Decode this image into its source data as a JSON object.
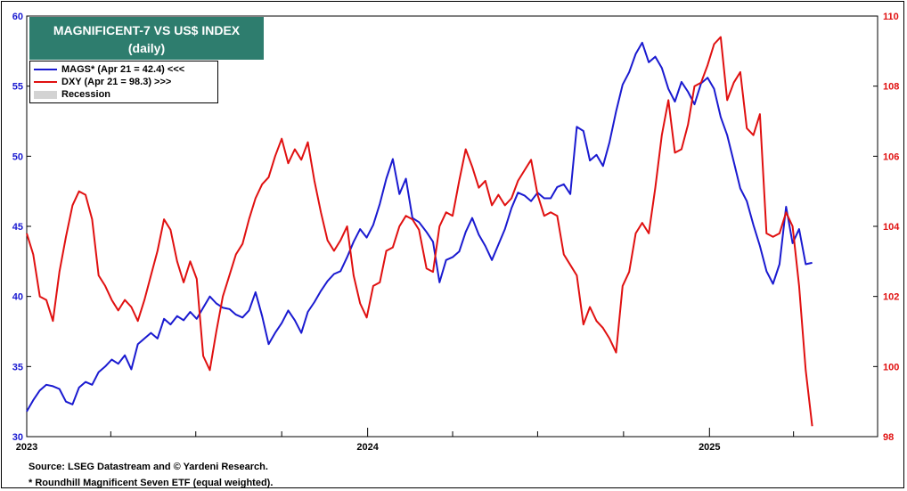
{
  "title_line1": "MAGNIFICENT-7 VS US$ INDEX",
  "title_line2": "(daily)",
  "legend": [
    {
      "label": "MAGS* (Apr 21 = 42.4) <<<",
      "color": "#1a1ad0",
      "kind": "line"
    },
    {
      "label": "DXY (Apr 21 = 98.3) >>>",
      "color": "#e01010",
      "kind": "line"
    },
    {
      "label": "Recession",
      "color": "#d3d3d3",
      "kind": "shade"
    }
  ],
  "footnotes": [
    "Source: LSEG Datastream and © Yardeni Research.",
    "* Roundhill Magnificent Seven ETF (equal weighted)."
  ],
  "chart_data": {
    "type": "line",
    "left_axis": {
      "ylim": [
        30,
        60
      ],
      "ticks": [
        30,
        35,
        40,
        45,
        50,
        55,
        60
      ],
      "color": "#1a1ad0"
    },
    "right_axis": {
      "ylim": [
        98,
        110
      ],
      "ticks": [
        98,
        100,
        102,
        104,
        106,
        108,
        110
      ],
      "color": "#e01010"
    },
    "x_axis": {
      "range": [
        "2023-01-01",
        "2025-06-30"
      ],
      "labels": [
        "2023",
        "2024",
        "2025"
      ]
    },
    "grid": false,
    "legend_position": "top-left",
    "series": [
      {
        "name": "MAGS* (Apr 21 = 42.4) <<<",
        "axis": "left",
        "color": "#1a1ad0",
        "points": [
          [
            "2023-01-01",
            31.8
          ],
          [
            "2023-01-08",
            32.6
          ],
          [
            "2023-01-15",
            33.3
          ],
          [
            "2023-01-22",
            33.7
          ],
          [
            "2023-01-29",
            33.6
          ],
          [
            "2023-02-05",
            33.4
          ],
          [
            "2023-02-12",
            32.5
          ],
          [
            "2023-02-19",
            32.3
          ],
          [
            "2023-02-26",
            33.5
          ],
          [
            "2023-03-05",
            33.9
          ],
          [
            "2023-03-12",
            33.7
          ],
          [
            "2023-03-19",
            34.6
          ],
          [
            "2023-03-26",
            35.0
          ],
          [
            "2023-04-02",
            35.5
          ],
          [
            "2023-04-09",
            35.2
          ],
          [
            "2023-04-16",
            35.8
          ],
          [
            "2023-04-23",
            34.8
          ],
          [
            "2023-04-30",
            36.6
          ],
          [
            "2023-05-07",
            37.0
          ],
          [
            "2023-05-14",
            37.4
          ],
          [
            "2023-05-21",
            37.0
          ],
          [
            "2023-05-28",
            38.4
          ],
          [
            "2023-06-04",
            38.0
          ],
          [
            "2023-06-11",
            38.6
          ],
          [
            "2023-06-18",
            38.3
          ],
          [
            "2023-06-25",
            38.9
          ],
          [
            "2023-07-02",
            38.4
          ],
          [
            "2023-07-09",
            39.2
          ],
          [
            "2023-07-16",
            40.0
          ],
          [
            "2023-07-23",
            39.5
          ],
          [
            "2023-07-30",
            39.2
          ],
          [
            "2023-08-06",
            39.1
          ],
          [
            "2023-08-13",
            38.7
          ],
          [
            "2023-08-20",
            38.5
          ],
          [
            "2023-08-27",
            39.0
          ],
          [
            "2023-09-03",
            40.3
          ],
          [
            "2023-09-10",
            38.6
          ],
          [
            "2023-09-17",
            36.6
          ],
          [
            "2023-09-24",
            37.4
          ],
          [
            "2023-10-01",
            38.1
          ],
          [
            "2023-10-08",
            39.0
          ],
          [
            "2023-10-15",
            38.3
          ],
          [
            "2023-10-22",
            37.4
          ],
          [
            "2023-10-29",
            38.9
          ],
          [
            "2023-11-05",
            39.6
          ],
          [
            "2023-11-12",
            40.4
          ],
          [
            "2023-11-19",
            41.1
          ],
          [
            "2023-11-26",
            41.6
          ],
          [
            "2023-12-03",
            41.8
          ],
          [
            "2023-12-10",
            42.8
          ],
          [
            "2023-12-17",
            43.9
          ],
          [
            "2023-12-24",
            44.8
          ],
          [
            "2023-12-31",
            44.2
          ],
          [
            "2024-01-07",
            45.1
          ],
          [
            "2024-01-14",
            46.6
          ],
          [
            "2024-01-21",
            48.4
          ],
          [
            "2024-01-28",
            49.8
          ],
          [
            "2024-02-04",
            47.3
          ],
          [
            "2024-02-11",
            48.4
          ],
          [
            "2024-02-18",
            45.6
          ],
          [
            "2024-02-25",
            45.3
          ],
          [
            "2024-03-04",
            44.6
          ],
          [
            "2024-03-11",
            43.9
          ],
          [
            "2024-03-18",
            41.0
          ],
          [
            "2024-03-25",
            42.6
          ],
          [
            "2024-04-01",
            42.8
          ],
          [
            "2024-04-08",
            43.2
          ],
          [
            "2024-04-15",
            44.6
          ],
          [
            "2024-04-22",
            45.6
          ],
          [
            "2024-04-29",
            44.4
          ],
          [
            "2024-05-06",
            43.6
          ],
          [
            "2024-05-13",
            42.6
          ],
          [
            "2024-05-20",
            43.7
          ],
          [
            "2024-05-27",
            44.8
          ],
          [
            "2024-06-03",
            46.3
          ],
          [
            "2024-06-10",
            47.4
          ],
          [
            "2024-06-17",
            47.2
          ],
          [
            "2024-06-24",
            46.8
          ],
          [
            "2024-07-01",
            47.4
          ],
          [
            "2024-07-08",
            47.0
          ],
          [
            "2024-07-15",
            47.0
          ],
          [
            "2024-07-22",
            47.8
          ],
          [
            "2024-07-29",
            48.0
          ],
          [
            "2024-08-05",
            47.3
          ],
          [
            "2024-08-12",
            52.1
          ],
          [
            "2024-08-19",
            51.8
          ],
          [
            "2024-08-26",
            49.7
          ],
          [
            "2024-09-02",
            50.1
          ],
          [
            "2024-09-09",
            49.3
          ],
          [
            "2024-09-16",
            51.0
          ],
          [
            "2024-09-23",
            53.2
          ],
          [
            "2024-09-30",
            55.1
          ],
          [
            "2024-10-07",
            56.0
          ],
          [
            "2024-10-14",
            57.3
          ],
          [
            "2024-10-21",
            58.1
          ],
          [
            "2024-10-28",
            56.7
          ],
          [
            "2024-11-04",
            57.1
          ],
          [
            "2024-11-11",
            56.3
          ],
          [
            "2024-11-18",
            54.8
          ],
          [
            "2024-11-25",
            53.9
          ],
          [
            "2024-12-02",
            55.3
          ],
          [
            "2024-12-09",
            54.6
          ],
          [
            "2024-12-16",
            53.7
          ],
          [
            "2024-12-23",
            55.2
          ],
          [
            "2024-12-30",
            55.6
          ],
          [
            "2025-01-06",
            54.8
          ],
          [
            "2025-01-13",
            52.8
          ],
          [
            "2025-01-20",
            51.5
          ],
          [
            "2025-01-27",
            49.6
          ],
          [
            "2025-02-03",
            47.7
          ],
          [
            "2025-02-10",
            46.8
          ],
          [
            "2025-02-17",
            45.1
          ],
          [
            "2025-02-24",
            43.6
          ],
          [
            "2025-03-03",
            41.8
          ],
          [
            "2025-03-10",
            40.9
          ],
          [
            "2025-03-17",
            42.3
          ],
          [
            "2025-03-24",
            46.4
          ],
          [
            "2025-03-31",
            43.8
          ],
          [
            "2025-04-07",
            44.8
          ],
          [
            "2025-04-14",
            42.3
          ],
          [
            "2025-04-21",
            42.4
          ]
        ]
      },
      {
        "name": "DXY (Apr 21 = 98.3) >>>",
        "axis": "right",
        "color": "#e01010",
        "points": [
          [
            "2023-01-01",
            103.8
          ],
          [
            "2023-01-08",
            103.2
          ],
          [
            "2023-01-15",
            102.0
          ],
          [
            "2023-01-22",
            101.9
          ],
          [
            "2023-01-29",
            101.3
          ],
          [
            "2023-02-05",
            102.7
          ],
          [
            "2023-02-12",
            103.7
          ],
          [
            "2023-02-19",
            104.6
          ],
          [
            "2023-02-26",
            105.0
          ],
          [
            "2023-03-05",
            104.9
          ],
          [
            "2023-03-12",
            104.2
          ],
          [
            "2023-03-19",
            102.6
          ],
          [
            "2023-03-26",
            102.3
          ],
          [
            "2023-04-02",
            101.9
          ],
          [
            "2023-04-09",
            101.6
          ],
          [
            "2023-04-16",
            101.9
          ],
          [
            "2023-04-23",
            101.7
          ],
          [
            "2023-04-30",
            101.3
          ],
          [
            "2023-05-07",
            101.9
          ],
          [
            "2023-05-14",
            102.6
          ],
          [
            "2023-05-21",
            103.3
          ],
          [
            "2023-05-28",
            104.2
          ],
          [
            "2023-06-04",
            103.9
          ],
          [
            "2023-06-11",
            103.0
          ],
          [
            "2023-06-18",
            102.4
          ],
          [
            "2023-06-25",
            103.0
          ],
          [
            "2023-07-02",
            102.5
          ],
          [
            "2023-07-09",
            100.3
          ],
          [
            "2023-07-16",
            99.9
          ],
          [
            "2023-07-23",
            101.0
          ],
          [
            "2023-07-30",
            102.0
          ],
          [
            "2023-08-06",
            102.6
          ],
          [
            "2023-08-13",
            103.2
          ],
          [
            "2023-08-20",
            103.5
          ],
          [
            "2023-08-27",
            104.2
          ],
          [
            "2023-09-03",
            104.8
          ],
          [
            "2023-09-10",
            105.2
          ],
          [
            "2023-09-17",
            105.4
          ],
          [
            "2023-09-24",
            106.0
          ],
          [
            "2023-10-01",
            106.5
          ],
          [
            "2023-10-08",
            105.8
          ],
          [
            "2023-10-15",
            106.2
          ],
          [
            "2023-10-22",
            105.9
          ],
          [
            "2023-10-29",
            106.4
          ],
          [
            "2023-11-05",
            105.3
          ],
          [
            "2023-11-12",
            104.4
          ],
          [
            "2023-11-19",
            103.6
          ],
          [
            "2023-11-26",
            103.3
          ],
          [
            "2023-12-03",
            103.6
          ],
          [
            "2023-12-10",
            104.0
          ],
          [
            "2023-12-17",
            102.6
          ],
          [
            "2023-12-24",
            101.8
          ],
          [
            "2023-12-31",
            101.4
          ],
          [
            "2024-01-07",
            102.3
          ],
          [
            "2024-01-14",
            102.4
          ],
          [
            "2024-01-21",
            103.3
          ],
          [
            "2024-01-28",
            103.4
          ],
          [
            "2024-02-04",
            104.0
          ],
          [
            "2024-02-11",
            104.3
          ],
          [
            "2024-02-18",
            104.2
          ],
          [
            "2024-02-25",
            103.9
          ],
          [
            "2024-03-04",
            102.8
          ],
          [
            "2024-03-11",
            102.7
          ],
          [
            "2024-03-18",
            104.0
          ],
          [
            "2024-03-25",
            104.4
          ],
          [
            "2024-04-01",
            104.3
          ],
          [
            "2024-04-08",
            105.3
          ],
          [
            "2024-04-15",
            106.2
          ],
          [
            "2024-04-22",
            105.7
          ],
          [
            "2024-04-29",
            105.1
          ],
          [
            "2024-05-06",
            105.3
          ],
          [
            "2024-05-13",
            104.6
          ],
          [
            "2024-05-20",
            104.9
          ],
          [
            "2024-05-27",
            104.6
          ],
          [
            "2024-06-03",
            104.8
          ],
          [
            "2024-06-10",
            105.3
          ],
          [
            "2024-06-17",
            105.6
          ],
          [
            "2024-06-24",
            105.9
          ],
          [
            "2024-07-01",
            104.9
          ],
          [
            "2024-07-08",
            104.3
          ],
          [
            "2024-07-15",
            104.4
          ],
          [
            "2024-07-22",
            104.3
          ],
          [
            "2024-07-29",
            103.2
          ],
          [
            "2024-08-05",
            102.9
          ],
          [
            "2024-08-12",
            102.6
          ],
          [
            "2024-08-19",
            101.2
          ],
          [
            "2024-08-26",
            101.7
          ],
          [
            "2024-09-02",
            101.3
          ],
          [
            "2024-09-09",
            101.1
          ],
          [
            "2024-09-16",
            100.8
          ],
          [
            "2024-09-23",
            100.4
          ],
          [
            "2024-09-30",
            102.3
          ],
          [
            "2024-10-07",
            102.7
          ],
          [
            "2024-10-14",
            103.8
          ],
          [
            "2024-10-21",
            104.1
          ],
          [
            "2024-10-28",
            103.8
          ],
          [
            "2024-11-04",
            105.1
          ],
          [
            "2024-11-11",
            106.6
          ],
          [
            "2024-11-18",
            107.6
          ],
          [
            "2024-11-25",
            106.1
          ],
          [
            "2024-12-02",
            106.2
          ],
          [
            "2024-12-09",
            106.9
          ],
          [
            "2024-12-16",
            108.0
          ],
          [
            "2024-12-23",
            108.1
          ],
          [
            "2024-12-30",
            108.6
          ],
          [
            "2025-01-06",
            109.2
          ],
          [
            "2025-01-13",
            109.4
          ],
          [
            "2025-01-20",
            107.6
          ],
          [
            "2025-01-27",
            108.1
          ],
          [
            "2025-02-03",
            108.4
          ],
          [
            "2025-02-10",
            106.8
          ],
          [
            "2025-02-17",
            106.6
          ],
          [
            "2025-02-24",
            107.2
          ],
          [
            "2025-03-03",
            103.8
          ],
          [
            "2025-03-10",
            103.7
          ],
          [
            "2025-03-17",
            103.8
          ],
          [
            "2025-03-24",
            104.4
          ],
          [
            "2025-03-31",
            104.0
          ],
          [
            "2025-04-07",
            102.3
          ],
          [
            "2025-04-14",
            99.9
          ],
          [
            "2025-04-21",
            98.3
          ]
        ]
      }
    ]
  }
}
